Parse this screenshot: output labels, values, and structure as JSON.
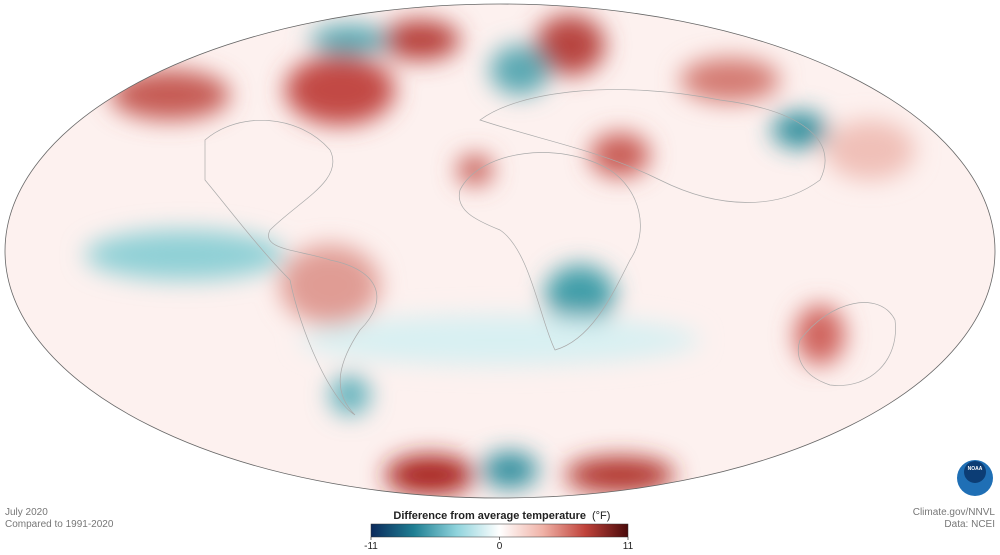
{
  "map": {
    "date": "July 2020",
    "baseline": "Compared to 1991-2020",
    "credit": "Climate.gov/NNVL",
    "source": "Data: NCEI",
    "logo": "NOAA",
    "legend": {
      "title": "Difference from average temperature",
      "unit": "(°F)",
      "min": -11,
      "max": 11,
      "ticks": [
        -11,
        0,
        11
      ],
      "colors": [
        "#0b2a5c",
        "#1f7f93",
        "#8fd3dc",
        "#ffffff",
        "#f0b3a8",
        "#c0433b",
        "#4a0a0a"
      ]
    }
  }
}
